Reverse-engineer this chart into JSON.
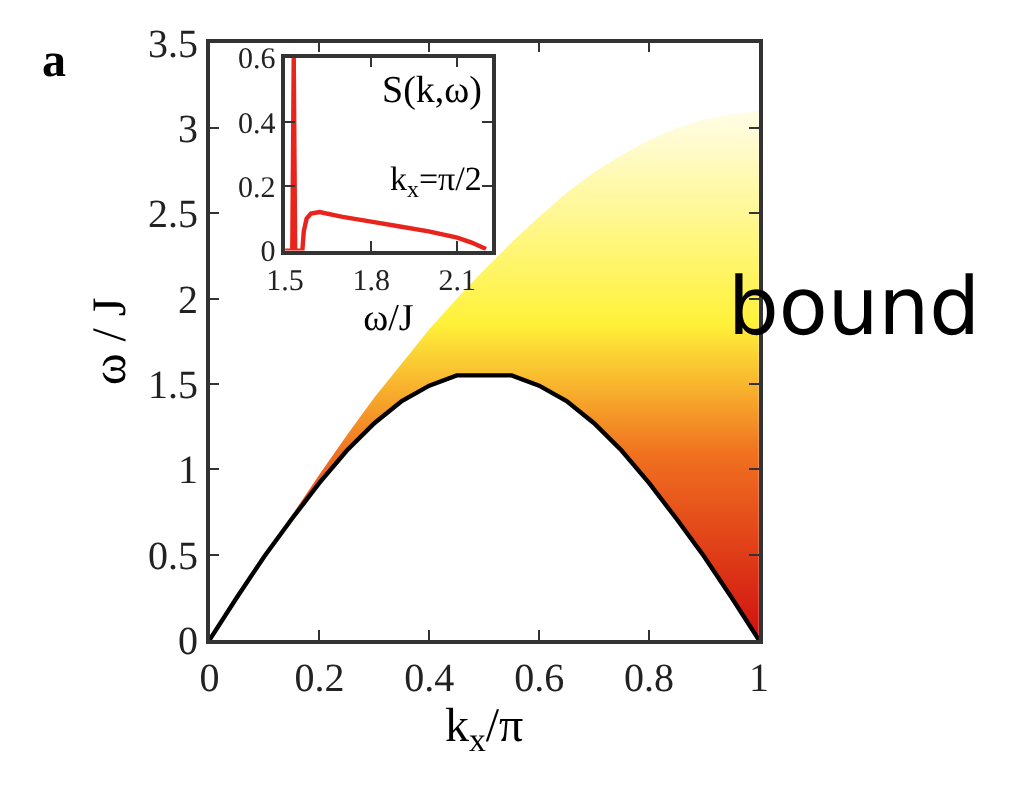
{
  "chart_data": [
    {
      "type": "line",
      "xlabel": "k$_{x}$/π",
      "ylabel": "ω / J",
      "x": [
        0,
        0.05,
        0.1,
        0.15,
        0.2,
        0.25,
        0.3,
        0.35,
        0.4,
        0.45,
        0.5,
        0.55,
        0.6,
        0.65,
        0.7,
        0.75,
        0.8,
        0.85,
        0.9,
        0.95,
        1
      ],
      "series": [
        {
          "color": "#000000",
          "values": [
            0,
            0.25,
            0.49,
            0.71,
            0.92,
            1.11,
            1.27,
            1.4,
            1.49,
            1.55,
            1.55,
            1.55,
            1.49,
            1.4,
            1.27,
            1.11,
            0.92,
            0.71,
            0.49,
            0.25,
            0
          ],
          "lower": [
            0,
            0.25,
            0.49,
            0.71,
            0.92,
            1.11,
            1.27,
            1.4,
            1.49,
            1.55,
            1.55,
            1.55,
            1.49,
            1.4,
            1.27,
            1.11,
            0.92,
            0.71,
            0.49,
            0.25,
            0
          ],
          "upper": [
            0,
            0.25,
            0.49,
            0.73,
            0.97,
            1.2,
            1.42,
            1.62,
            1.82,
            2.0,
            2.17,
            2.33,
            2.48,
            2.62,
            2.74,
            2.84,
            2.93,
            3.0,
            3.05,
            3.08,
            3.1
          ]
        }
      ],
      "xlim": [
        0,
        1
      ],
      "ylim": [
        0,
        3.5
      ],
      "xticks": [
        0,
        0.2,
        0.4,
        0.6,
        0.8,
        1
      ],
      "yticks": [
        0,
        0.5,
        1,
        1.5,
        2,
        2.5,
        3,
        3.5
      ],
      "annotations": [
        "a",
        "bound"
      ]
    },
    {
      "type": "line",
      "xlabel": "ω/J",
      "x": [
        1.5,
        1.525,
        1.53,
        1.535,
        1.56,
        1.565,
        1.575,
        1.59,
        1.62,
        1.7,
        1.8,
        1.9,
        2.0,
        2.1,
        2.15,
        2.2
      ],
      "series": [
        {
          "color": "#e8241c",
          "values": [
            0,
            0,
            0.6,
            0,
            0,
            0.06,
            0.1,
            0.115,
            0.12,
            0.105,
            0.09,
            0.075,
            0.06,
            0.04,
            0.025,
            0.005
          ]
        }
      ],
      "xlim": [
        1.5,
        2.22
      ],
      "ylim": [
        0,
        0.6
      ],
      "xticks": [
        1.5,
        1.8,
        2.1
      ],
      "yticks": [
        0,
        0.2,
        0.4,
        0.6
      ],
      "annotations": [
        "S(k,ω)",
        "k$_{x}$=π/2"
      ]
    }
  ]
}
